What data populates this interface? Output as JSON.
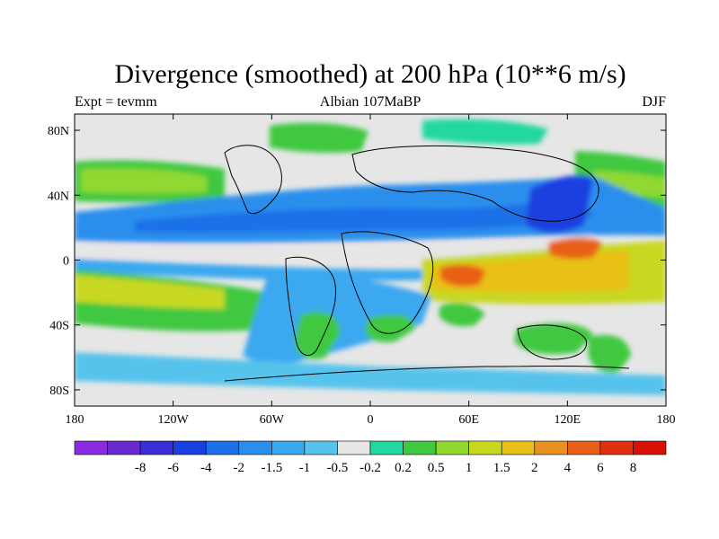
{
  "chart_data": {
    "type": "heatmap",
    "title": "Divergence (smoothed) at 200 hPa (10**6 m/s)",
    "subtitle_left": "Expt = tevmm",
    "subtitle_center": "Albian   107MaBP",
    "subtitle_right": "DJF",
    "x_ticks": [
      {
        "label": "180",
        "value": -180
      },
      {
        "label": "120W",
        "value": -120
      },
      {
        "label": "60W",
        "value": -60
      },
      {
        "label": "0",
        "value": 0
      },
      {
        "label": "60E",
        "value": 60
      },
      {
        "label": "120E",
        "value": 120
      },
      {
        "label": "180",
        "value": 180
      }
    ],
    "y_ticks": [
      {
        "label": "80N",
        "value": 80
      },
      {
        "label": "40N",
        "value": 40
      },
      {
        "label": "0",
        "value": 0
      },
      {
        "label": "40S",
        "value": -40
      },
      {
        "label": "80S",
        "value": -80
      }
    ],
    "xlim": [
      -180,
      180
    ],
    "ylim": [
      -90,
      90
    ],
    "colorbar": {
      "colors": [
        "#8a2be2",
        "#6a2ad0",
        "#3b2ed8",
        "#1a3fe0",
        "#1f6fe8",
        "#2a8fec",
        "#3aa8f0",
        "#56c3ec",
        "#e6e6e6",
        "#20d8a0",
        "#40c840",
        "#90d830",
        "#c8d820",
        "#e8c018",
        "#e89020",
        "#e86018",
        "#e03010",
        "#d81008"
      ],
      "labels": [
        "-8",
        "-6",
        "-4",
        "-2",
        "-1.5",
        "-1",
        "-0.5",
        "-0.2",
        "0.2",
        "0.5",
        "1",
        "1.5",
        "2",
        "4",
        "6",
        "8"
      ]
    }
  }
}
